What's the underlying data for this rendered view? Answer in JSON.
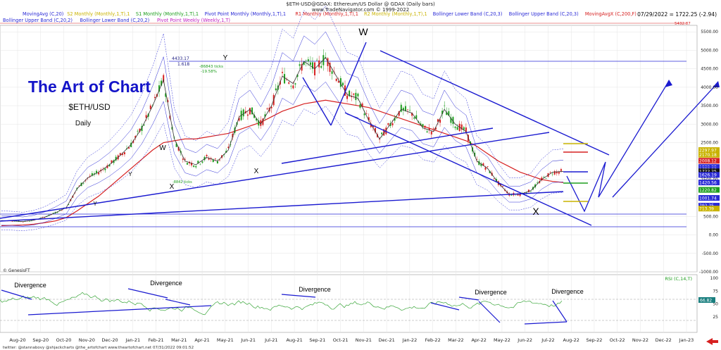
{
  "header": {
    "symbol_line": "$ETH-USD@GDAX: Ethereum/US Dollar @ GDAX (Daily bars)",
    "site": "www.TradeNavigator.com © 1999-2022",
    "last_price": "07/29/2022 = 1722.25 (-2.94)"
  },
  "legend": {
    "row1": [
      {
        "label": "MovingAvg (C,20)",
        "color": "#2a2ad6"
      },
      {
        "label": "S2 Monthly (Monthly,1,T),1",
        "color": "#c9b300"
      },
      {
        "label": "S1 Monthly (Monthly,1,T),1",
        "color": "#1e9e1e"
      },
      {
        "label": "Pivot Point Monthly (Monthly,1,T),1",
        "color": "#2a2ad6"
      },
      {
        "label": "R1 Monthly (Monthly,1,T),1",
        "color": "#d62020"
      },
      {
        "label": "R2 Monthly (Monthly,1,T),1",
        "color": "#c9b300"
      },
      {
        "label": "Bollinger Lower Band (C,20,3)",
        "color": "#2a2ad6"
      },
      {
        "label": "Bollinger Upper Band (C,20,3)",
        "color": "#2a2ad6"
      },
      {
        "label": "MovingAvgX (C,200,F)",
        "color": "#d62020"
      }
    ],
    "row2": [
      {
        "label": "Bollinger Upper Band (C,20,2)",
        "color": "#2a2ad6"
      },
      {
        "label": "Bollinger Lower Band (C,20,2)",
        "color": "#2a2ad6"
      },
      {
        "label": "Pivot Point Weekly (Weekly,1,T)",
        "color": "#c020c0"
      }
    ]
  },
  "title_block": {
    "brand": "The Art of Chart",
    "ticker": "$ETH/USD",
    "timeframe": "Daily"
  },
  "annotations": {
    "w_top": "W",
    "y_top": "Y",
    "x_bottom": "X",
    "w_small": "W",
    "x_small": "X",
    "x_mid": "X",
    "y_small1": "Y",
    "y_small2": "Y",
    "fib_value": "4433.17",
    "fib_ratio": "1.618",
    "ticks_note": "-86843 ticks",
    "pct_note": "-19.58%",
    "ticks_note2": "-8842 ticks",
    "genesis": "© GenesisFT",
    "footer": "twitter: @stannabovy @shjackcharts @the_artofchart   www.theartofchart.net   07/31/2022 09:01:52"
  },
  "rsi": {
    "label": "RSI (C,14,T)",
    "value_badge": "66.82",
    "divergence_labels": [
      "Divergence",
      "Divergence",
      "Divergence",
      "Divergence",
      "Divergence"
    ],
    "ticks": [
      "100",
      "75",
      "50",
      "25"
    ]
  },
  "price_badges": [
    {
      "text": "2297.97",
      "color": "#c9b300"
    },
    {
      "text": "2170.18",
      "color": "#c9b300"
    },
    {
      "text": "2008.12",
      "color": "#d62020"
    },
    {
      "text": "1839.38",
      "color": "#2a2ad6"
    },
    {
      "text": "1780.63",
      "color": "#2a2ad6"
    },
    {
      "text": "1722.25",
      "color": "#111111"
    },
    {
      "text": "1626.19",
      "color": "#2a2ad6"
    },
    {
      "text": "1420.56",
      "color": "#2a2ad6"
    },
    {
      "text": "1220.82",
      "color": "#1e9e1e"
    },
    {
      "text": "1001.74",
      "color": "#2a2ad6"
    },
    {
      "text": "792.25",
      "color": "#2a2ad6"
    },
    {
      "text": "713.39",
      "color": "#c9b300"
    }
  ],
  "chart_data": {
    "type": "line",
    "title": "$ETH-USD@GDAX: Ethereum/US Dollar @ GDAX (Daily bars)",
    "xlabel": "",
    "ylabel": "",
    "ylim": [
      -1000,
      5600
    ],
    "yticks": [
      "5500.00",
      "5000.00",
      "4500.00",
      "4000.00",
      "3500.00",
      "3000.00",
      "2500.00",
      "2000.00",
      "1500.00",
      "1000.00",
      "500.00",
      "0.00",
      "-500.00",
      "-1000.00"
    ],
    "x_labels": [
      "Aug-20",
      "Sep-20",
      "Oct-20",
      "Nov-20",
      "Dec-20",
      "Jan-21",
      "Feb-21",
      "Mar-21",
      "Apr-21",
      "May-21",
      "Jun-21",
      "Jul-21",
      "Aug-21",
      "Sep-21",
      "Oct-21",
      "Nov-21",
      "Dec-21",
      "Jan-22",
      "Feb-22",
      "Mar-22",
      "Apr-22",
      "May-22",
      "Jun-22",
      "Jul-22",
      "Aug-22",
      "Sep-22",
      "Oct-22",
      "Nov-22",
      "Dec-22",
      "Jan-23"
    ],
    "series": [
      {
        "name": "$ETH-USD",
        "values": [
          390,
          380,
          360,
          400,
          480,
          600,
          740,
          1250,
          1550,
          1700,
          1900,
          2150,
          2450,
          2900,
          3500,
          4200,
          2600,
          2000,
          1900,
          2100,
          2000,
          2300,
          3200,
          3400,
          3000,
          3500,
          4300,
          4100,
          4700,
          4500,
          4800,
          4300,
          3800,
          3700,
          3100,
          2600,
          3000,
          3400,
          3300,
          2900,
          2800,
          3400,
          3000,
          2800,
          2000,
          1800,
          1400,
          1100,
          1100,
          1200,
          1500,
          1700,
          1722
        ]
      },
      {
        "name": "MovingAvgX (C,200,F)",
        "values": [
          250,
          260,
          270,
          290,
          330,
          380,
          470,
          650,
          850,
          1050,
          1300,
          1550,
          1800,
          2050,
          2300,
          2500,
          2550,
          2600,
          2600,
          2650,
          2700,
          2750,
          2850,
          2950,
          3050,
          3200,
          3350,
          3450,
          3550,
          3600,
          3650,
          3600,
          3550,
          3500,
          3450,
          3350,
          3250,
          3150,
          3050,
          2950,
          2850,
          2750,
          2650,
          2550,
          2400,
          2200,
          2000,
          1850,
          1700,
          1600,
          1500,
          1450,
          1420
        ]
      }
    ]
  }
}
